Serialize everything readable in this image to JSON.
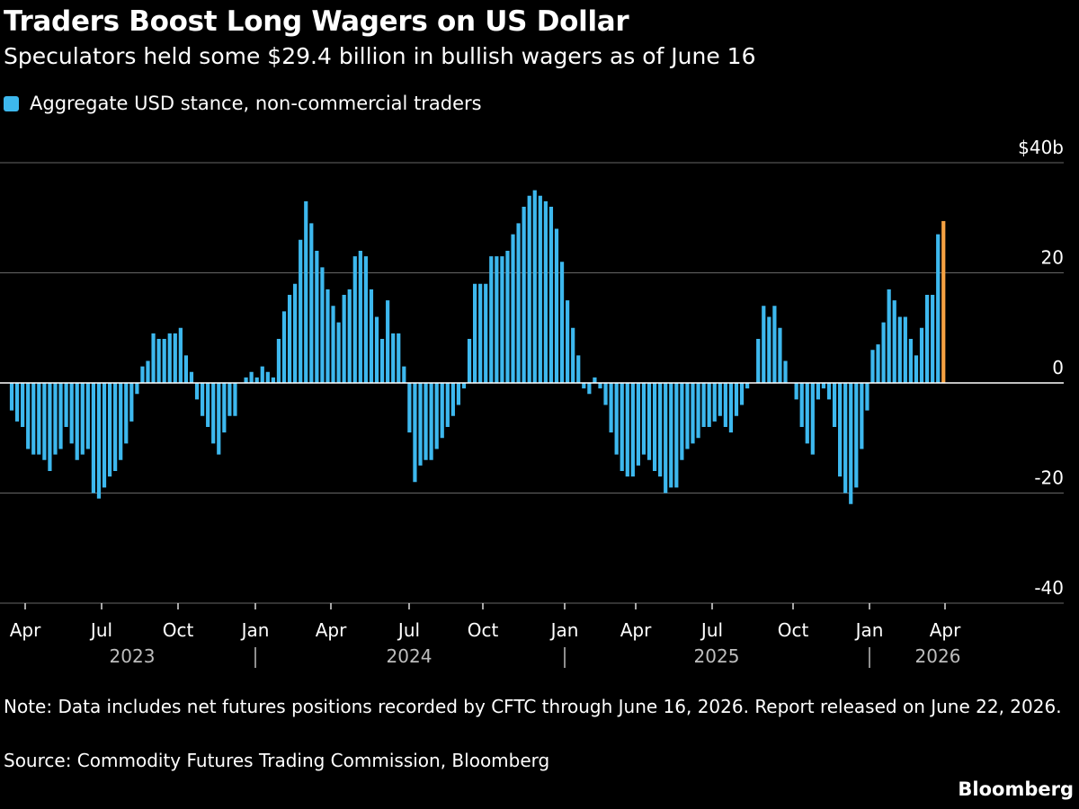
{
  "header": {
    "title": "Traders Boost Long Wagers on US Dollar",
    "subtitle": "Speculators held some $29.4 billion in bullish wagers as of June 16"
  },
  "legend": {
    "label": "Aggregate USD stance, non-commercial traders"
  },
  "footer": {
    "note": "Note: Data includes net futures positions recorded by CFTC through June 16, 2026. Report released on June 22, 2026.",
    "source": "Source: Commodity Futures Trading Commission, Bloomberg",
    "brand": "Bloomberg"
  },
  "colors": {
    "bar": "#3db8ee",
    "highlight": "#f5a142",
    "grid": "#666666",
    "zero": "#ffffff"
  },
  "chart_data": {
    "type": "bar",
    "series": [
      {
        "values": [
          -5,
          -7,
          -8,
          -12,
          -13,
          -13,
          -14,
          -16,
          -13,
          -12,
          -8,
          -11,
          -14,
          -13,
          -12,
          -20,
          -21,
          -19,
          -17,
          -16,
          -14,
          -11,
          -7,
          -2,
          3,
          4,
          9,
          8,
          8,
          9,
          9,
          10,
          5,
          2,
          -3,
          -6,
          -8,
          -11,
          -13,
          -9,
          -6,
          -6,
          0,
          1,
          2,
          1,
          3,
          2,
          1,
          8,
          13,
          16,
          18,
          26,
          33,
          29,
          24,
          21,
          17,
          14,
          11,
          16,
          17,
          23,
          24,
          23,
          17,
          12,
          8,
          15,
          9,
          9,
          3,
          -9,
          -18,
          -15,
          -14,
          -14,
          -12,
          -10,
          -8,
          -6,
          -4,
          -1,
          8,
          18,
          18,
          18,
          23,
          23,
          23,
          24,
          27,
          29,
          32,
          34,
          35,
          34,
          33,
          32,
          28,
          22,
          15,
          10,
          5,
          -1,
          -2,
          1,
          -1,
          -4,
          -9,
          -13,
          -16,
          -17,
          -17,
          -15,
          -13,
          -14,
          -16,
          -17,
          -20,
          -19,
          -19,
          -14,
          -12,
          -11,
          -10,
          -8,
          -8,
          -7,
          -6,
          -8,
          -9,
          -6,
          -4,
          -1,
          0,
          8,
          14,
          12,
          14,
          10,
          4,
          0,
          -3,
          -8,
          -11,
          -13,
          -3,
          -1,
          -3,
          -8,
          -17,
          -20,
          -22,
          -19,
          -12,
          -5,
          6,
          7,
          11,
          17,
          15,
          12,
          12,
          8,
          5,
          10,
          16,
          16,
          27,
          29.4
        ]
      }
    ],
    "x_ticks": [
      "Apr",
      "Jul",
      "Oct",
      "Jan",
      "Apr",
      "Jul",
      "Oct",
      "Jan",
      "Apr",
      "Jul",
      "Oct",
      "Jan",
      "Apr"
    ],
    "years": [
      "2023",
      "2024",
      "2025",
      "2026"
    ],
    "y_ticks": [
      "$40b",
      "20",
      "0",
      "-20",
      "-40"
    ],
    "ylim": [
      -40,
      40
    ],
    "legend_position": "top-left"
  }
}
